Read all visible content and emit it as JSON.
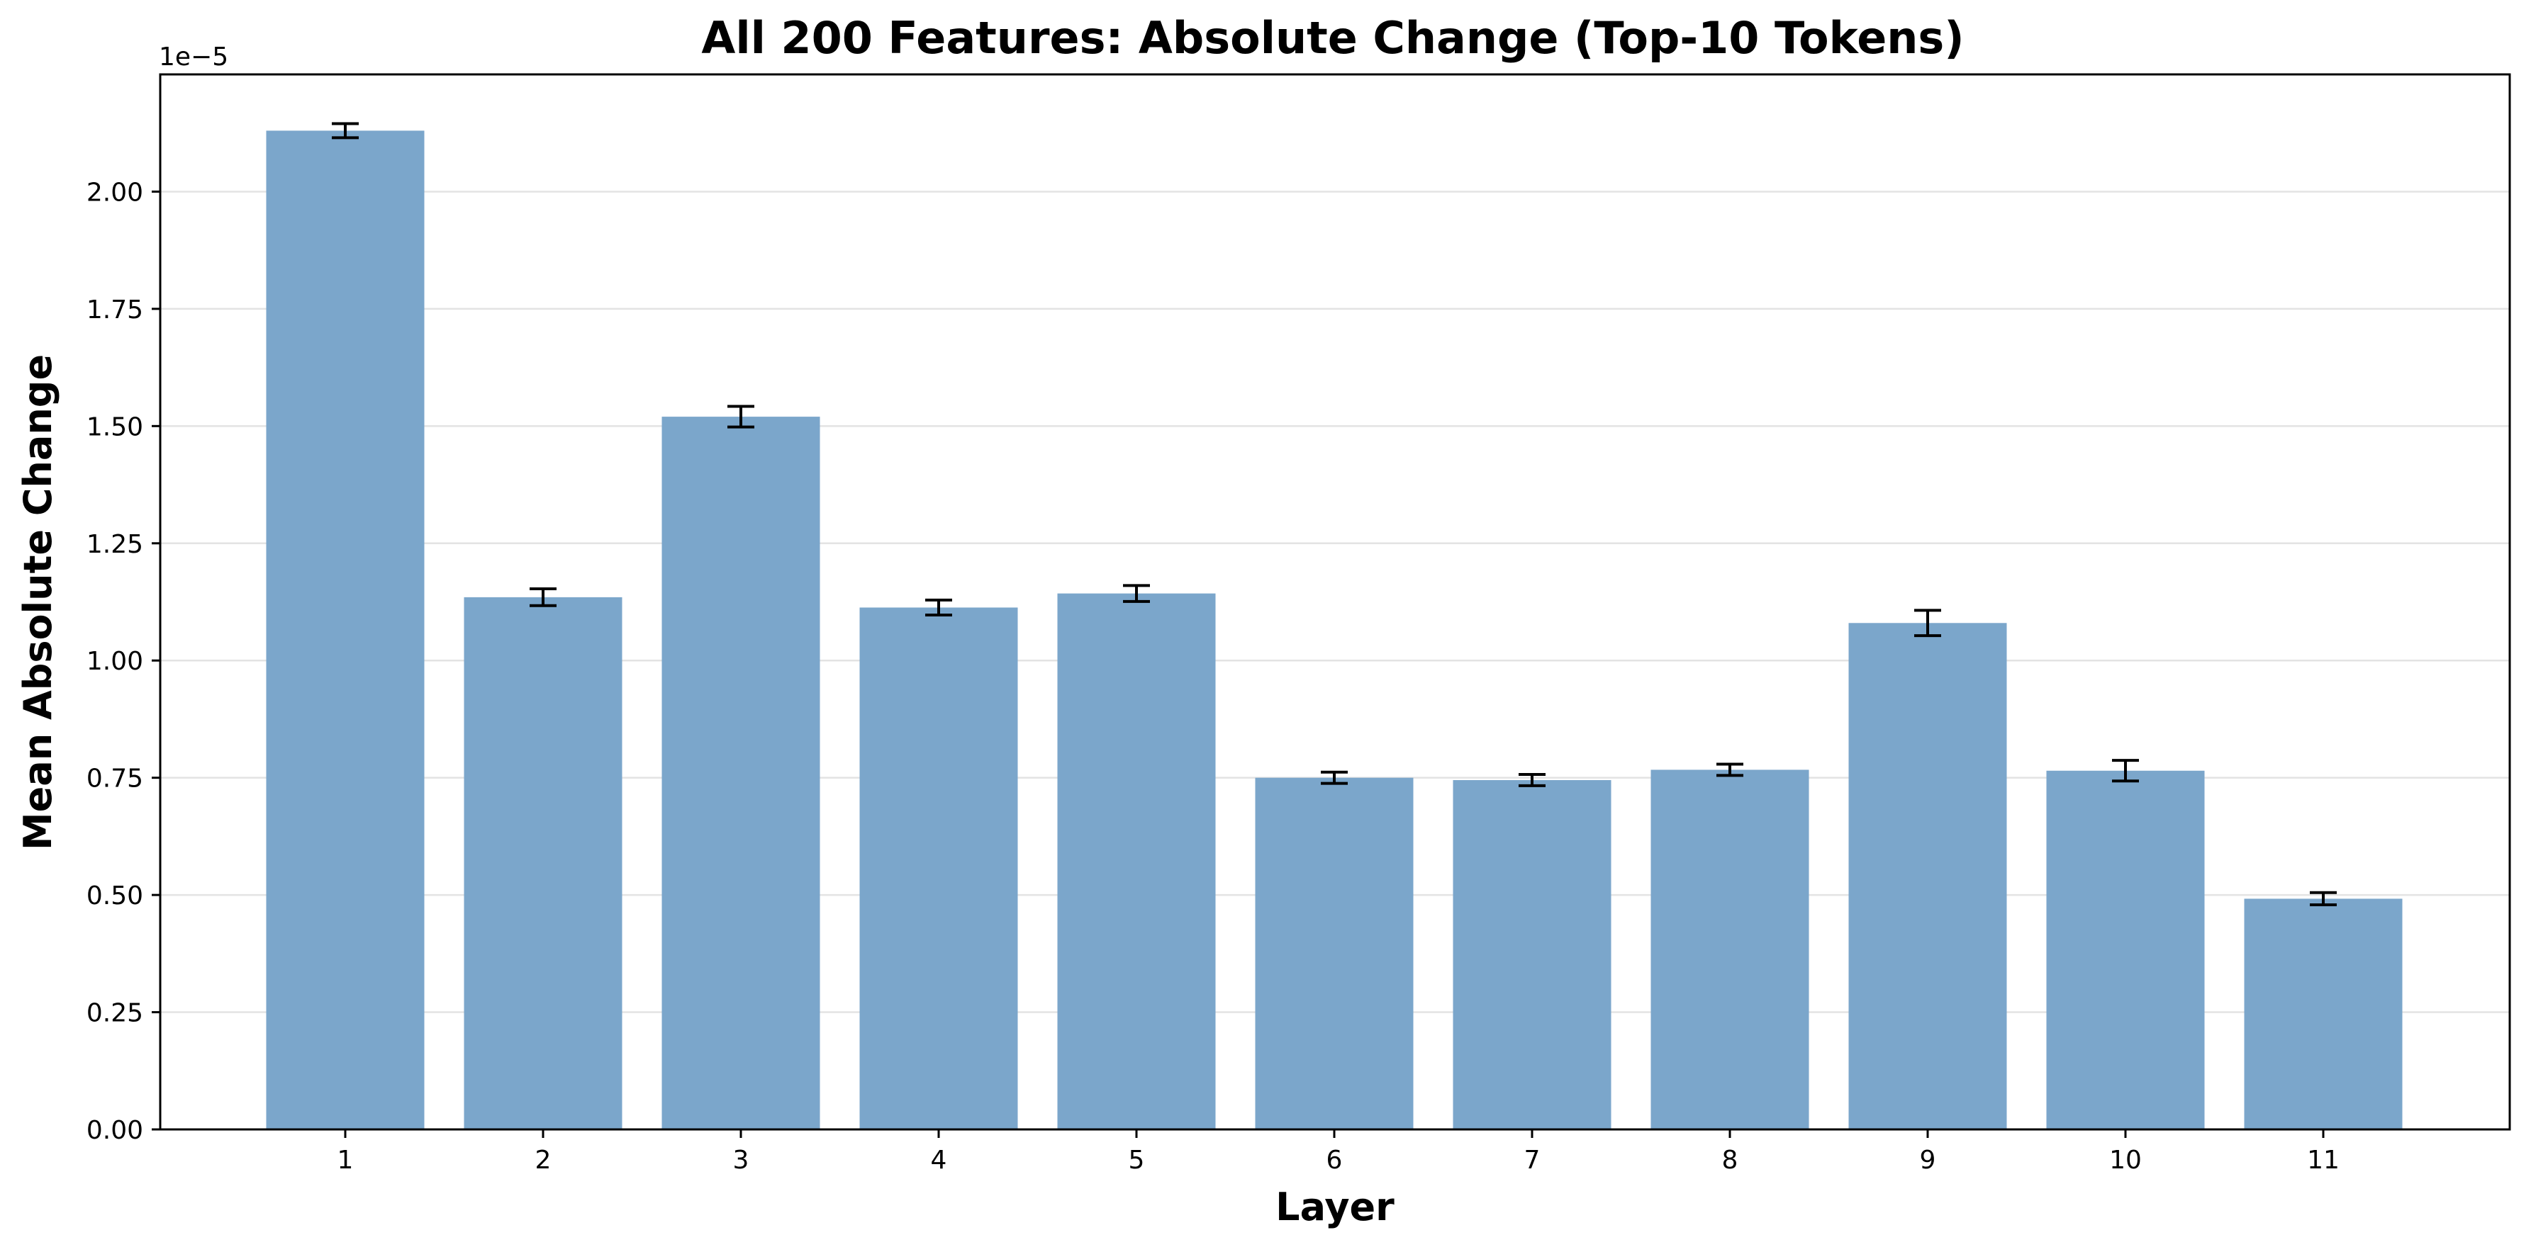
{
  "chart_data": {
    "type": "bar",
    "title": "All 200 Features: Absolute Change (Top-10 Tokens)",
    "xlabel": "Layer",
    "ylabel": "Mean Absolute Change",
    "y_offset_label": "1e−5",
    "categories": [
      "1",
      "2",
      "3",
      "4",
      "5",
      "6",
      "7",
      "8",
      "9",
      "10",
      "11"
    ],
    "values": [
      2.13,
      1.135,
      1.52,
      1.113,
      1.143,
      0.75,
      0.745,
      0.767,
      1.08,
      0.765,
      0.492
    ],
    "errors": [
      0.015,
      0.018,
      0.022,
      0.016,
      0.017,
      0.012,
      0.012,
      0.012,
      0.027,
      0.022,
      0.013
    ],
    "value_scale": "1e-5",
    "ylim": [
      0,
      2.25
    ],
    "yticks": [
      "0.00",
      "0.25",
      "0.50",
      "0.75",
      "1.00",
      "1.25",
      "1.50",
      "1.75",
      "2.00"
    ],
    "grid": "horizontal",
    "bar_color": "#7ba6cb",
    "error_color": "#000000"
  }
}
